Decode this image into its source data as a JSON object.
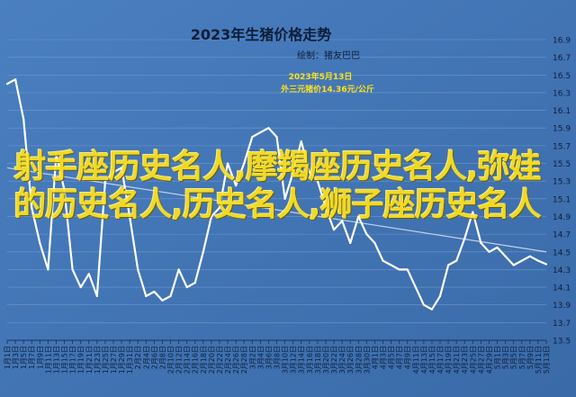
{
  "chart_data": {
    "type": "line",
    "title": "2023年生猪价格走势",
    "subtitle": "绘制：猪友巴巴",
    "annotation": {
      "line1": "2023年5月13日",
      "line2": "外三元猪价14.36元/公斤",
      "x": "5月13日",
      "y": 14.36
    },
    "ylim": [
      13.5,
      16.9
    ],
    "yticks": [
      16.9,
      16.7,
      16.5,
      16.3,
      16.1,
      15.9,
      15.7,
      15.5,
      15.3,
      15.1,
      14.9,
      14.7,
      14.5,
      14.3,
      14.1,
      13.9,
      13.7,
      13.5
    ],
    "x": [
      "1月1日",
      "1月3日",
      "1月5日",
      "1月7日",
      "1月9日",
      "1月11日",
      "1月13日",
      "1月15日",
      "1月17日",
      "1月19日",
      "1月21日",
      "1月23日",
      "1月25日",
      "1月27日",
      "1月29日",
      "1月31日",
      "2月2日",
      "2月4日",
      "2月6日",
      "2月8日",
      "2月10日",
      "2月12日",
      "2月14日",
      "2月16日",
      "2月18日",
      "2月20日",
      "2月22日",
      "2月24日",
      "2月26日",
      "2月28日",
      "3月2日",
      "3月4日",
      "3月6日",
      "3月8日",
      "3月10日",
      "3月12日",
      "3月14日",
      "3月16日",
      "3月18日",
      "3月20日",
      "3月22日",
      "3月24日",
      "3月26日",
      "3月28日",
      "3月30日",
      "4月1日",
      "4月3日",
      "4月5日",
      "4月7日",
      "4月9日",
      "4月11日",
      "4月13日",
      "4月15日",
      "4月17日",
      "4月19日",
      "4月21日",
      "4月23日",
      "4月25日",
      "4月27日",
      "4月29日",
      "5月1日",
      "5月3日",
      "5月5日",
      "5月7日",
      "5月9日",
      "5月11日",
      "5月13日"
    ],
    "xtick_labels": [
      "1月1日",
      "1月3日",
      "1月5日",
      "1月7日",
      "1月9日",
      "1月11日",
      "1月13日",
      "1月15日",
      "1月17日",
      "1月19日",
      "1月21日",
      "1月23日",
      "1月25日",
      "1月27日",
      "1月29日",
      "1月31日",
      "2月2日",
      "2月4日",
      "2月6日",
      "2月8日",
      "2月10日",
      "2月12日",
      "2月14日",
      "2月16日",
      "2月18日",
      "2月20日",
      "2月22日",
      "2月24日",
      "2月26日",
      "2月28日",
      "3月2日",
      "3月4日",
      "3月6日",
      "3月8日",
      "3月10日",
      "3月12日",
      "3月14日",
      "3月16日",
      "3月18日",
      "3月20日",
      "3月22日",
      "3月24日",
      "3月26日",
      "3月28日",
      "3月30日",
      "4月1日",
      "4月3日",
      "4月5日",
      "4月7日",
      "4月9日",
      "4月11日",
      "4月13日",
      "4月15日",
      "4月17日",
      "4月19日",
      "4月21日",
      "4月23日",
      "4月25日",
      "4月27日",
      "4月29日",
      "5月1日",
      "5月3日",
      "5月5日",
      "5月7日",
      "5月9日",
      "5月11日",
      "5月13日"
    ],
    "series": [
      {
        "values": [
          16.4,
          16.45,
          16.0,
          15.0,
          14.6,
          14.3,
          15.6,
          15.2,
          14.3,
          14.1,
          14.25,
          14.0,
          15.3,
          15.4,
          15.45,
          14.9,
          14.3,
          14.0,
          14.05,
          13.95,
          14.0,
          14.3,
          14.1,
          14.15,
          14.5,
          14.9,
          15.0,
          15.5,
          15.25,
          15.5,
          15.8,
          15.85,
          15.9,
          15.8,
          15.1,
          15.4,
          15.75,
          15.4,
          15.3,
          15.0,
          14.75,
          14.85,
          14.6,
          14.9,
          14.7,
          14.6,
          14.4,
          14.35,
          14.3,
          14.3,
          14.1,
          13.9,
          13.85,
          14.0,
          14.35,
          14.4,
          14.65,
          14.95,
          14.6,
          14.5,
          14.55,
          14.45,
          14.35,
          14.4,
          14.45,
          14.4,
          14.36
        ]
      }
    ],
    "trendline": {
      "start": 15.45,
      "end": 14.5
    },
    "grid": true
  },
  "overlay_text": "射手座历史名人,摩羯座历史名人,弥娃的历史名人,历史名人,狮子座历史名人"
}
